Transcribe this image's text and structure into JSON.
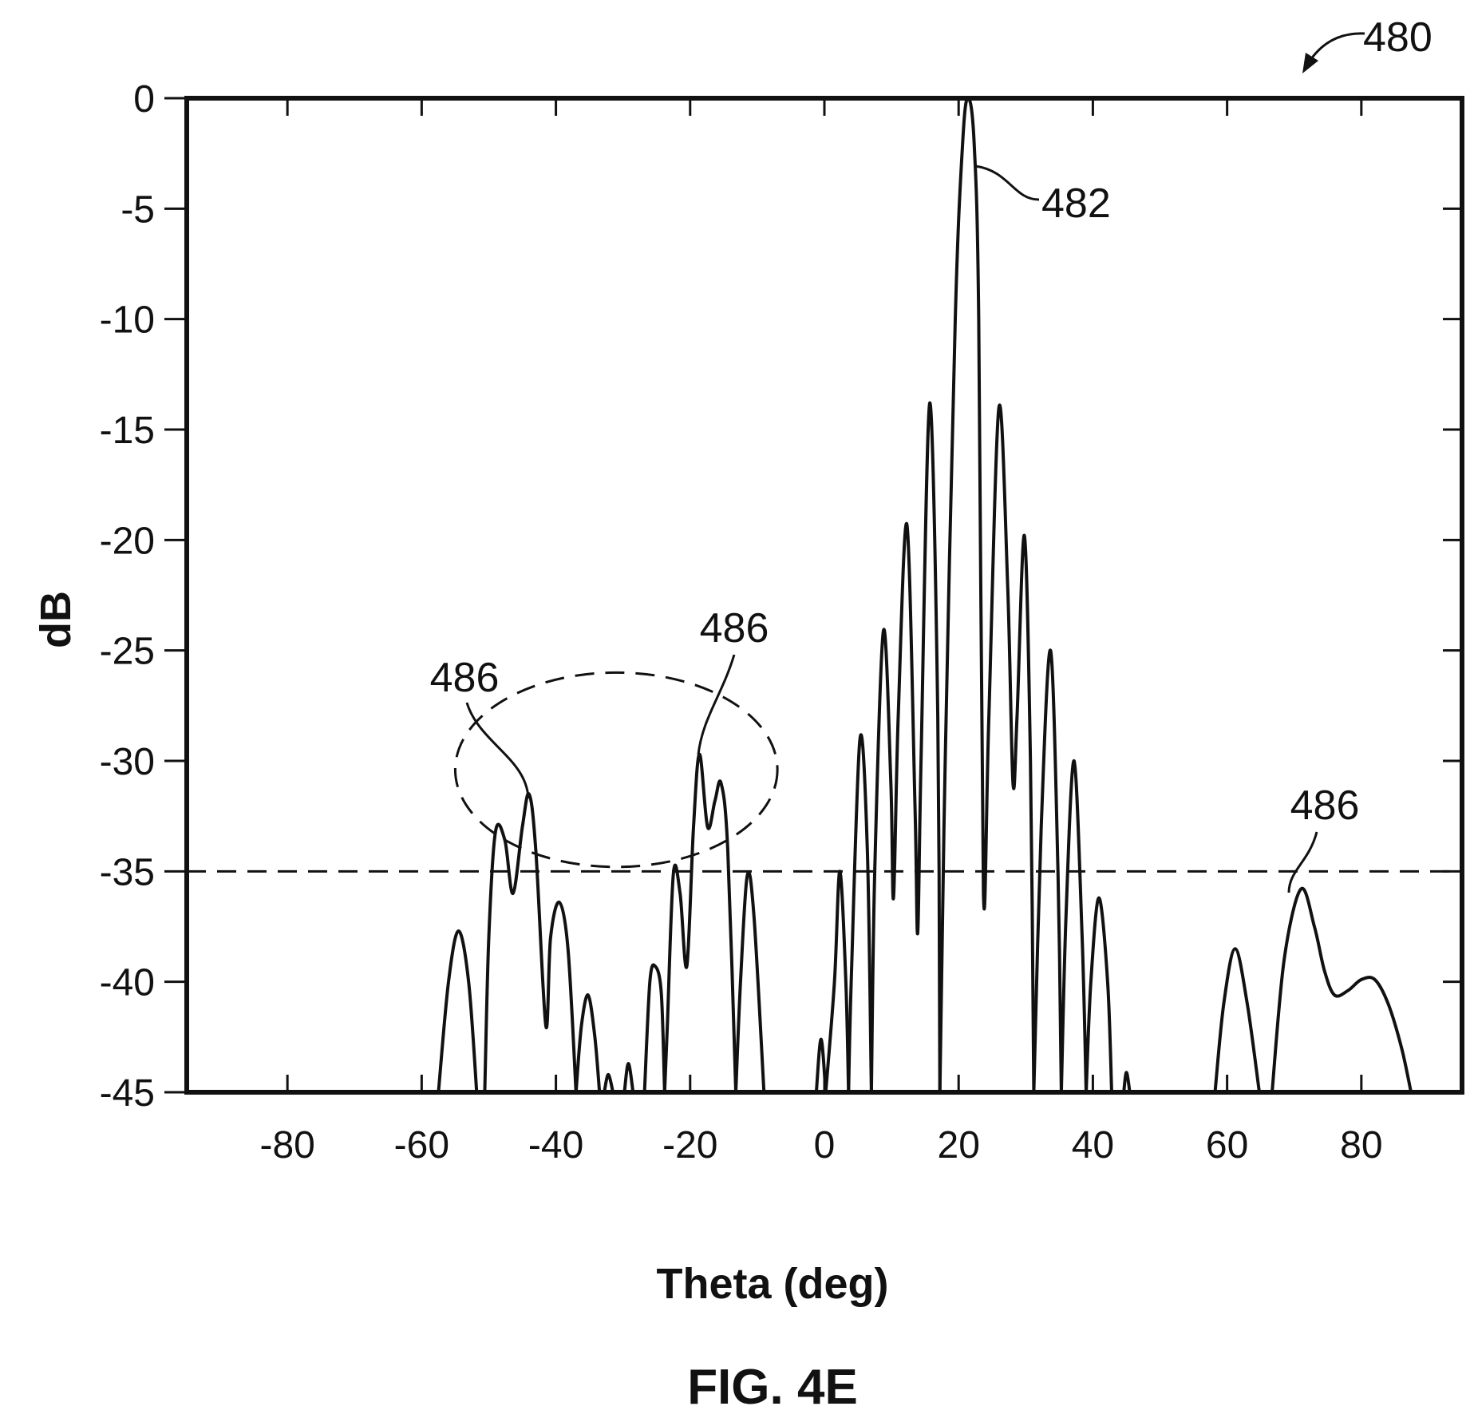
{
  "figure": {
    "caption": "FIG. 4E",
    "reference_numeral": "480"
  },
  "chart_data": {
    "type": "line",
    "title": "",
    "xlabel": "Theta (deg)",
    "ylabel": "dB",
    "xlim": [
      -95,
      95
    ],
    "ylim": [
      -45,
      0
    ],
    "xticks": [
      -80,
      -60,
      -40,
      -20,
      0,
      20,
      40,
      60,
      80
    ],
    "yticks": [
      0,
      -5,
      -10,
      -15,
      -20,
      -25,
      -30,
      -35,
      -40,
      -45
    ],
    "grid": false,
    "threshold": {
      "y": -35,
      "style": "dashed"
    },
    "highlight_ellipse": {
      "cx": -31,
      "cy": -30.4,
      "rx": 24,
      "ry": 4.4,
      "style": "dashed"
    },
    "series": [
      {
        "points": [
          [
            -57.5,
            -45
          ],
          [
            -56,
            -40
          ],
          [
            -54.5,
            -37.7
          ],
          [
            -53,
            -40
          ],
          [
            -51.8,
            -45
          ],
          [
            -50.6,
            -45
          ],
          [
            -50,
            -38
          ],
          [
            -49,
            -33.2
          ],
          [
            -47.6,
            -33.6
          ],
          [
            -46.4,
            -36
          ],
          [
            -45,
            -33
          ],
          [
            -44,
            -31.5
          ],
          [
            -43,
            -34
          ],
          [
            -41.5,
            -42
          ],
          [
            -40.8,
            -38
          ],
          [
            -39.5,
            -36.4
          ],
          [
            -38.2,
            -38.5
          ],
          [
            -37,
            -45
          ],
          [
            -36.2,
            -42
          ],
          [
            -35.2,
            -40.6
          ],
          [
            -34.2,
            -42.5
          ],
          [
            -33.5,
            -45
          ],
          [
            -32.8,
            -45
          ],
          [
            -32.2,
            -44.2
          ],
          [
            -31.5,
            -45
          ],
          [
            -29.8,
            -45
          ],
          [
            -29.2,
            -43.7
          ],
          [
            -28.5,
            -45
          ],
          [
            -26.8,
            -45
          ],
          [
            -26,
            -40
          ],
          [
            -25.2,
            -39.3
          ],
          [
            -24.3,
            -40.5
          ],
          [
            -23.8,
            -45
          ],
          [
            -23.4,
            -42
          ],
          [
            -22.5,
            -35.1
          ],
          [
            -21.5,
            -36
          ],
          [
            -20.5,
            -39.3
          ],
          [
            -19.5,
            -33
          ],
          [
            -18.6,
            -29.7
          ],
          [
            -17.4,
            -33
          ],
          [
            -16.3,
            -31.8
          ],
          [
            -15.4,
            -31
          ],
          [
            -14.4,
            -34
          ],
          [
            -13.2,
            -45
          ],
          [
            -12.5,
            -40
          ],
          [
            -11.5,
            -35.2
          ],
          [
            -10.5,
            -37
          ],
          [
            -9,
            -45
          ],
          [
            -1.2,
            -45
          ],
          [
            -0.5,
            -42.6
          ],
          [
            0.2,
            -45
          ],
          [
            1.5,
            -40
          ],
          [
            2.3,
            -35
          ],
          [
            3.2,
            -40
          ],
          [
            3.6,
            -45
          ],
          [
            4,
            -40
          ],
          [
            5.3,
            -29
          ],
          [
            6.4,
            -34
          ],
          [
            7,
            -45
          ],
          [
            7.5,
            -35
          ],
          [
            8.8,
            -24.1
          ],
          [
            9.9,
            -31
          ],
          [
            10.3,
            -36.2
          ],
          [
            11,
            -28
          ],
          [
            12.3,
            -19.3
          ],
          [
            13.5,
            -32
          ],
          [
            13.9,
            -37.8
          ],
          [
            14.4,
            -30
          ],
          [
            15.7,
            -13.8
          ],
          [
            16.9,
            -28
          ],
          [
            17.2,
            -45
          ],
          [
            18,
            -30
          ],
          [
            19.5,
            -10
          ],
          [
            20.6,
            -2
          ],
          [
            21.4,
            0
          ],
          [
            22.3,
            -2
          ],
          [
            23,
            -10
          ],
          [
            23.7,
            -36
          ],
          [
            24.5,
            -28
          ],
          [
            26,
            -14
          ],
          [
            27.3,
            -22
          ],
          [
            28.1,
            -31
          ],
          [
            28.7,
            -28
          ],
          [
            29.8,
            -19.8
          ],
          [
            30.7,
            -30
          ],
          [
            31.2,
            -45
          ],
          [
            32.3,
            -33
          ],
          [
            33.7,
            -25
          ],
          [
            34.8,
            -35
          ],
          [
            35.3,
            -45
          ],
          [
            36,
            -37
          ],
          [
            37.2,
            -30
          ],
          [
            38.4,
            -38
          ],
          [
            39,
            -45
          ],
          [
            39.7,
            -40
          ],
          [
            40.9,
            -36.2
          ],
          [
            42.2,
            -40
          ],
          [
            42.8,
            -45
          ],
          [
            44.6,
            -45
          ],
          [
            45,
            -44.1
          ],
          [
            45.5,
            -45
          ],
          [
            58.2,
            -45
          ],
          [
            59.5,
            -41
          ],
          [
            61.2,
            -38.5
          ],
          [
            63,
            -41
          ],
          [
            64.8,
            -45
          ],
          [
            66.7,
            -45
          ],
          [
            68.5,
            -39
          ],
          [
            71,
            -35.8
          ],
          [
            73,
            -37.5
          ],
          [
            74.5,
            -39.5
          ],
          [
            76,
            -40.6
          ],
          [
            78,
            -40.4
          ],
          [
            80,
            -39.9
          ],
          [
            82,
            -39.9
          ],
          [
            84,
            -41
          ],
          [
            86,
            -43
          ],
          [
            87.4,
            -45
          ]
        ]
      }
    ],
    "annotations": [
      {
        "label": "482"
      },
      {
        "label": "486"
      },
      {
        "label": "486"
      },
      {
        "label": "486"
      }
    ]
  }
}
